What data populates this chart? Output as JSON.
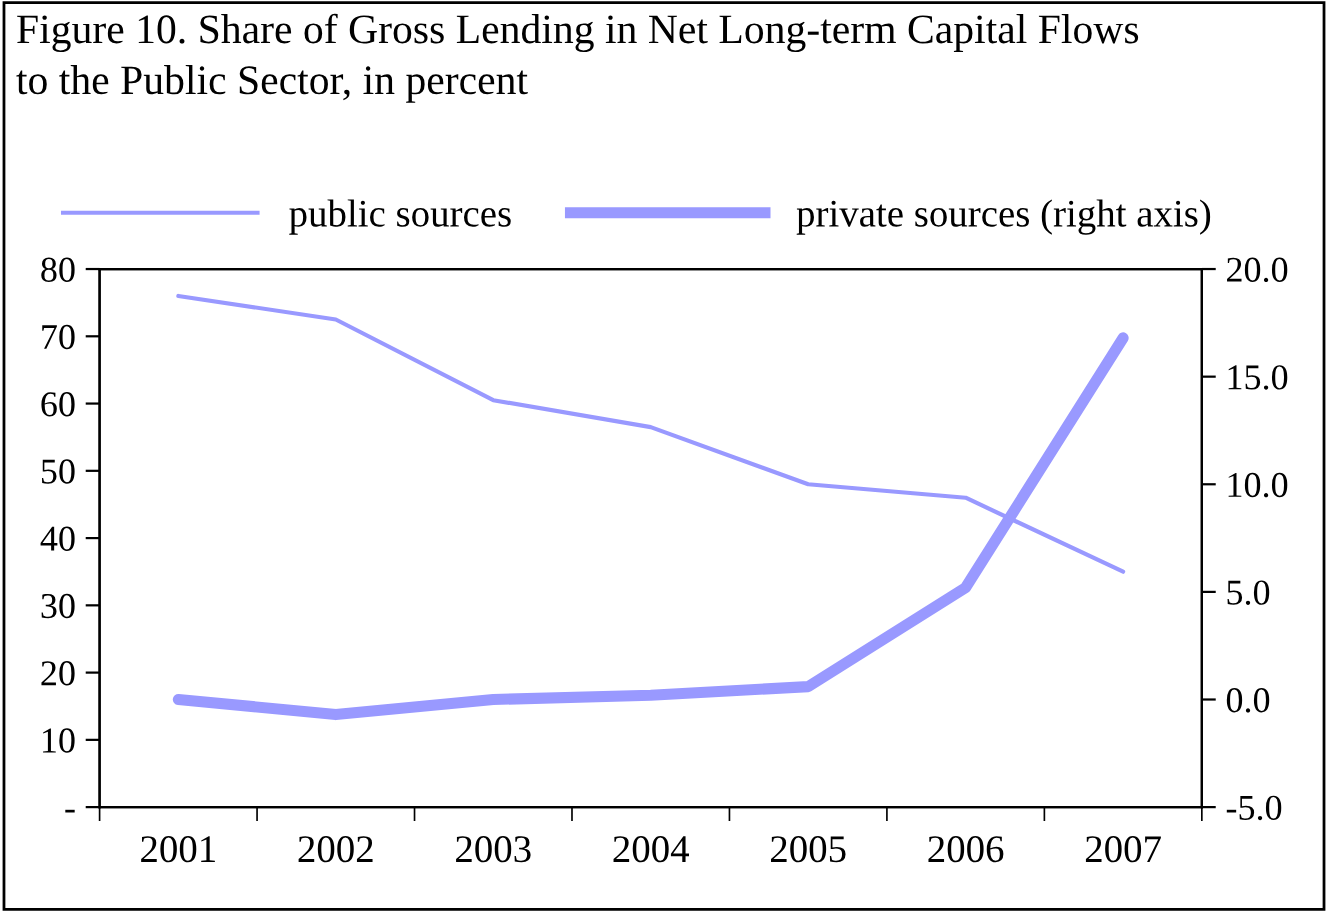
{
  "chart_data": {
    "type": "line",
    "title": "Figure 10. Share of Gross Lending in Net Long-term Capital Flows\nto the Public Sector, in percent",
    "categories": [
      "2001",
      "2002",
      "2003",
      "2004",
      "2005",
      "2006",
      "2007"
    ],
    "series": [
      {
        "name": "public sources",
        "color": "#9999ff",
        "values": [
          76,
          72.5,
          60.5,
          56.5,
          48,
          46,
          35
        ]
      },
      {
        "name": "private sources (right axis)",
        "color": "#9999ff",
        "axis": "y2",
        "values": [
          0,
          -0.7,
          0,
          0.2,
          0.6,
          5.2,
          16.8
        ]
      }
    ],
    "ylim": [
      0,
      80
    ],
    "yticks": [
      {
        "value": 0,
        "label": "-"
      },
      10,
      20,
      30,
      40,
      50,
      60,
      70,
      80
    ],
    "y2lim": [
      -5,
      20
    ],
    "y2ticks": [
      {
        "value": -5,
        "label": "-5.0"
      },
      {
        "value": 0,
        "label": "0.0"
      },
      {
        "value": 5,
        "label": "5.0"
      },
      {
        "value": 10,
        "label": "10.0"
      },
      {
        "value": 15,
        "label": "15.0"
      },
      {
        "value": 20,
        "label": "20.0"
      }
    ],
    "grid": false,
    "legend": "top",
    "marker": "none",
    "line_style": "solid"
  }
}
